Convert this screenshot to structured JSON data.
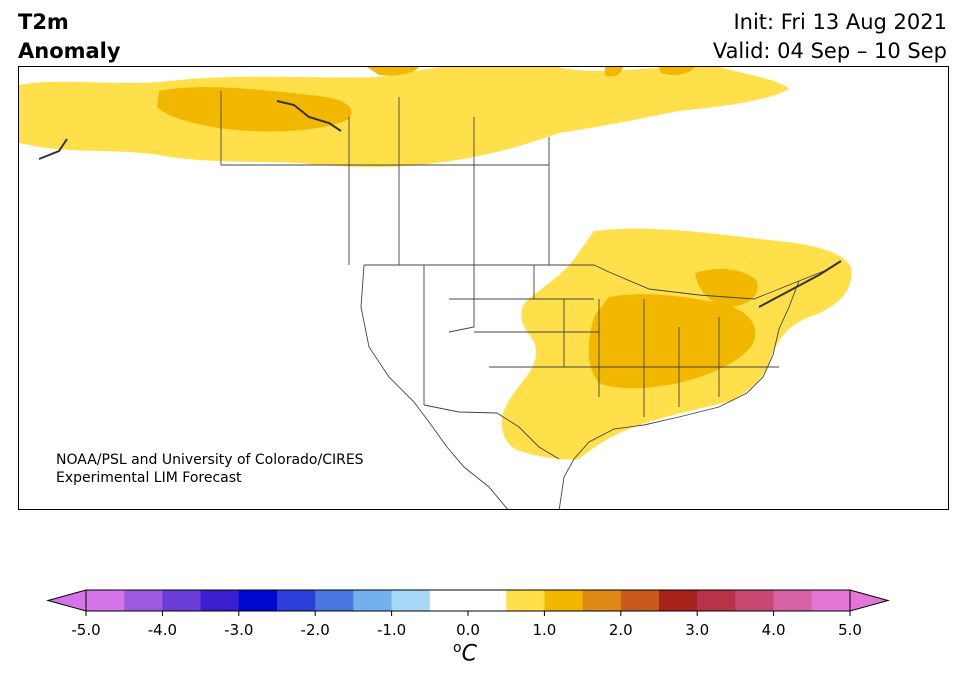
{
  "header": {
    "title_line1": "T2m",
    "title_line2": "Anomaly",
    "init": "Init: Fri 13 Aug 2021",
    "valid": "Valid: 04 Sep – 10 Sep"
  },
  "credit": {
    "line1": "NOAA/PSL and University of Colorado/CIRES",
    "line2": "Experimental LIM Forecast"
  },
  "colorbar": {
    "unit_base": "C",
    "unit_sup": "o",
    "ticks": [
      "-5.0",
      "-4.0",
      "-3.0",
      "-2.0",
      "-1.0",
      "0.0",
      "1.0",
      "2.0",
      "3.0",
      "4.0",
      "5.0"
    ],
    "tick_values": [
      -5,
      -4,
      -3,
      -2,
      -1,
      0,
      1,
      2,
      3,
      4,
      5
    ],
    "min": -5.0,
    "max": 5.0,
    "bin_width": 0.5,
    "colors": [
      "#d474e6",
      "#9e5ae0",
      "#6a3cd8",
      "#3a1fd0",
      "#0008d0",
      "#2a3ed8",
      "#4a76e0",
      "#74b0ee",
      "#a8d8f8",
      "#ffffff",
      "#ffffff",
      "#ffe04a",
      "#f2b800",
      "#e08a16",
      "#c85a1c",
      "#a8221c",
      "#b83248",
      "#c84a72",
      "#d662a6",
      "#e476d8"
    ],
    "under_color": "#d474e6",
    "over_color": "#e476d8"
  },
  "map": {
    "ocean_color": "#ffffff",
    "land_color": "#ffffff",
    "anomaly_0_5_to_1_color": "#ffe04a",
    "anomaly_1_to_1_5_color": "#f2b800"
  }
}
